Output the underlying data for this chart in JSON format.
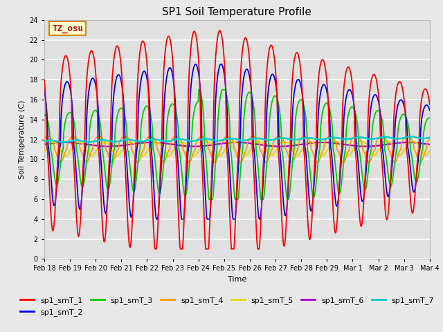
{
  "title": "SP1 Soil Temperature Profile",
  "xlabel": "Time",
  "ylabel": "Soil Temperature (C)",
  "ylim": [
    0,
    24
  ],
  "yticks": [
    0,
    2,
    4,
    6,
    8,
    10,
    12,
    14,
    16,
    18,
    20,
    22,
    24
  ],
  "xtick_labels": [
    "Feb 18",
    "Feb 19",
    "Feb 20",
    "Feb 21",
    "Feb 22",
    "Feb 23",
    "Feb 24",
    "Feb 25",
    "Feb 26",
    "Feb 27",
    "Feb 28",
    "Feb 29",
    "Mar 1",
    "Mar 2",
    "Mar 3",
    "Mar 4"
  ],
  "series_colors": {
    "sp1_smT_1": "#ff0000",
    "sp1_smT_2": "#0000ee",
    "sp1_smT_3": "#00cc00",
    "sp1_smT_4": "#ff9900",
    "sp1_smT_5": "#dddd00",
    "sp1_smT_6": "#aa00cc",
    "sp1_smT_7": "#00cccc"
  },
  "annotation_text": "TZ_osu",
  "annotation_box_color": "#ffffcc",
  "annotation_box_edge": "#cc8800",
  "annotation_text_color": "#cc0000",
  "fig_bg_color": "#e8e8e8",
  "plot_bg_color": "#e0e0e0"
}
